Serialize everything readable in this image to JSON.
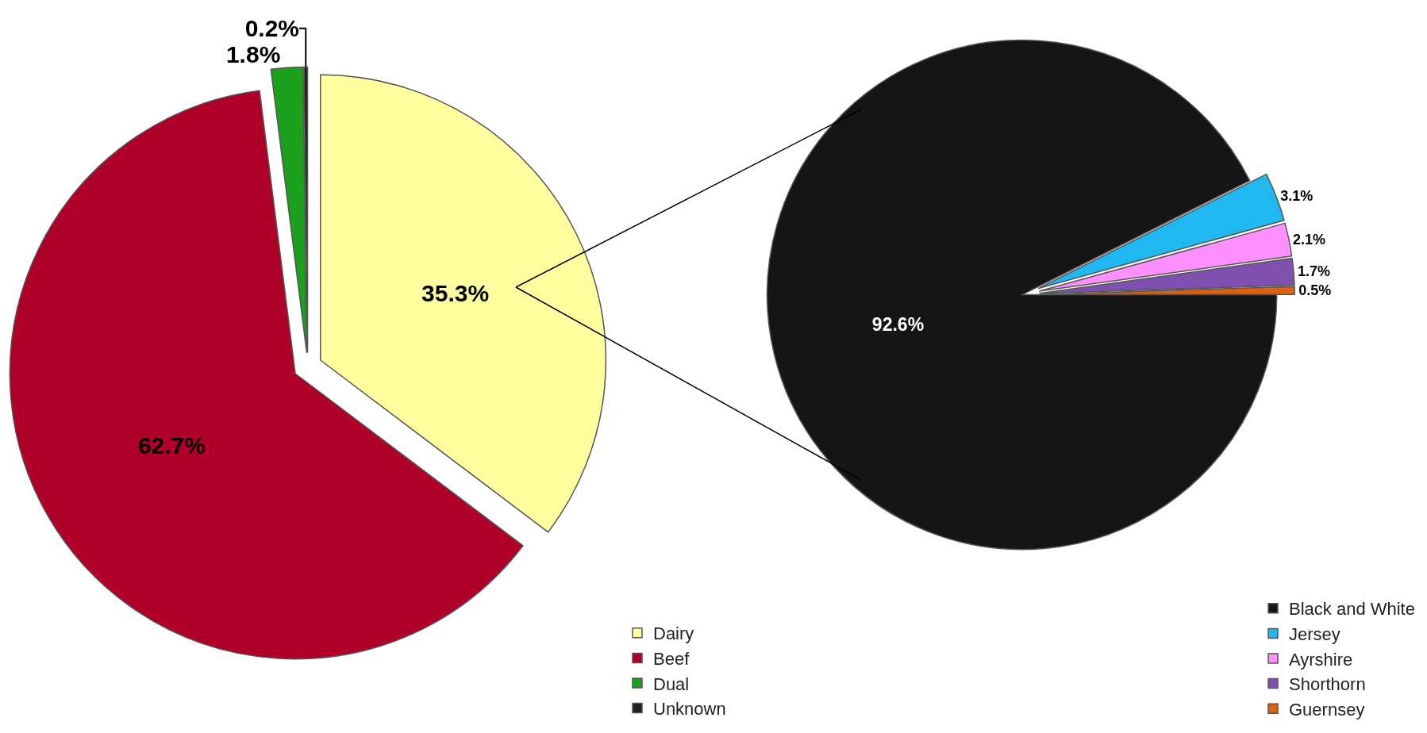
{
  "chart_data": [
    {
      "type": "pie",
      "categories": [
        "Dairy",
        "Beef",
        "Dual",
        "Unknown"
      ],
      "values": [
        35.3,
        62.7,
        1.8,
        0.2
      ],
      "colors": [
        "#ffffa0",
        "#b0002a",
        "#1aa01a",
        "#202020"
      ],
      "value_labels": [
        "35.3%",
        "62.7%",
        "1.8%",
        "0.2%"
      ],
      "legend": "bottom right"
    },
    {
      "type": "pie",
      "categories": [
        "Black and White",
        "Jersey",
        "Ayrshire",
        "Shorthorn",
        "Guernsey"
      ],
      "values": [
        92.6,
        3.1,
        2.1,
        1.7,
        0.5
      ],
      "colors": [
        "#151515",
        "#20b8f0",
        "#ff90ff",
        "#8050b0",
        "#e06010"
      ],
      "value_labels": [
        "92.6%",
        "3.1%",
        "2.1%",
        "1.7%",
        "0.5%"
      ],
      "legend": "bottom right"
    }
  ]
}
